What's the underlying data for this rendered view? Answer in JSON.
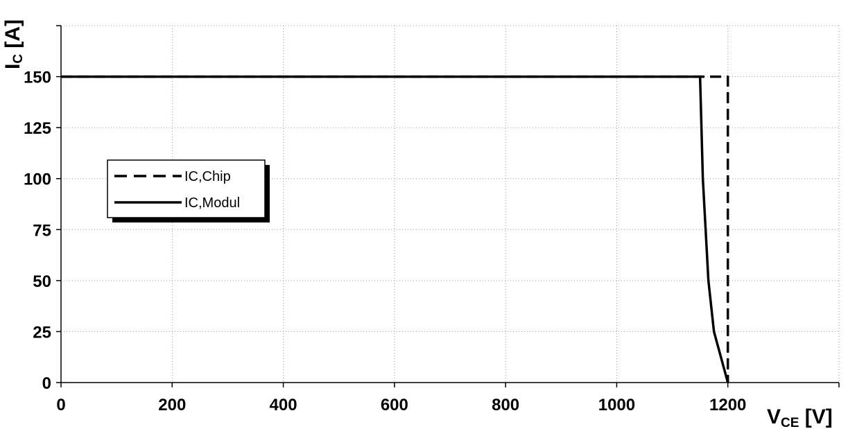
{
  "chart_data": {
    "type": "line",
    "title": "",
    "xlabel": {
      "main": "V",
      "sub": "CE",
      "unit": " [V]"
    },
    "ylabel": {
      "main": "I",
      "sub": "C",
      "unit": " [A]"
    },
    "xlim": [
      0,
      1400
    ],
    "ylim": [
      0,
      175
    ],
    "xticks": [
      0,
      200,
      400,
      600,
      800,
      1000,
      1200
    ],
    "xtick_labels": [
      "0",
      "200",
      "400",
      "600",
      "800",
      "1000",
      "1200"
    ],
    "yticks": [
      0,
      25,
      50,
      75,
      100,
      125,
      150
    ],
    "ytick_labels": [
      "0",
      "25",
      "50",
      "75",
      "100",
      "125",
      "150"
    ],
    "grid": true,
    "legend_position": "left",
    "series": [
      {
        "name": "IC,Chip",
        "style": "dashed",
        "color": "#000000",
        "points": [
          [
            0,
            150
          ],
          [
            1200,
            150
          ],
          [
            1200,
            0
          ]
        ]
      },
      {
        "name": "IC,Modul",
        "style": "solid",
        "color": "#000000",
        "points": [
          [
            0,
            150
          ],
          [
            1150,
            150
          ],
          [
            1152,
            130
          ],
          [
            1155,
            100
          ],
          [
            1160,
            75
          ],
          [
            1165,
            50
          ],
          [
            1175,
            25
          ],
          [
            1190,
            10
          ],
          [
            1200,
            0
          ]
        ]
      }
    ]
  }
}
